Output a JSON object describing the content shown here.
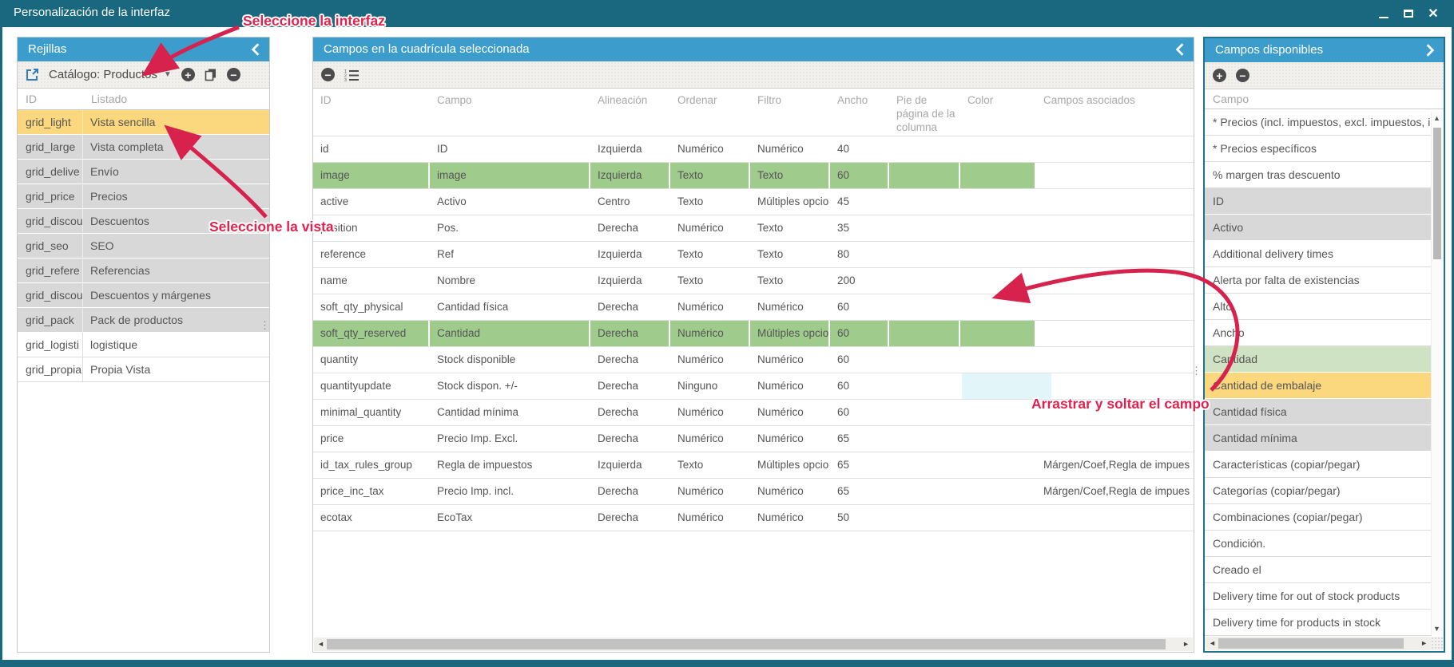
{
  "window": {
    "title": "Personalización de la interfaz"
  },
  "colors": {
    "titlebar": "#196880",
    "panel_header": "#3C9DCD",
    "selected_orange": "#FBD77D",
    "row_gray": "#D8D8D8",
    "row_green": "#9FCB8D",
    "item_green": "#CFE2C3",
    "drop_cyan": "#E2F5F9",
    "annotation_red": "#E0234E",
    "link_blue": "#2D7DC0"
  },
  "annotations": {
    "interface": "Seleccione la interfaz",
    "view": "Seleccione la vista",
    "drag": "Arrastrar y soltar el campo"
  },
  "grids_panel": {
    "title": "Rejillas",
    "toolbar": {
      "catalog_label": "Catálogo: Productos",
      "icons": [
        "external-link-icon",
        "chevron-down-icon",
        "add-icon",
        "copy-icon",
        "remove-icon"
      ]
    },
    "columns": [
      "ID",
      "Listado"
    ],
    "rows": [
      {
        "id": "grid_light",
        "label": "Vista sencilla",
        "state": "selected"
      },
      {
        "id": "grid_large",
        "label": "Vista completa",
        "state": "gray"
      },
      {
        "id": "grid_delive",
        "label": "Envío",
        "state": "gray"
      },
      {
        "id": "grid_price",
        "label": "Precios",
        "state": "gray"
      },
      {
        "id": "grid_discou",
        "label": "Descuentos",
        "state": "gray"
      },
      {
        "id": "grid_seo",
        "label": "SEO",
        "state": "gray"
      },
      {
        "id": "grid_refere",
        "label": "Referencias",
        "state": "gray"
      },
      {
        "id": "grid_discou",
        "label": "Descuentos y márgenes",
        "state": "gray"
      },
      {
        "id": "grid_pack",
        "label": "Pack de productos",
        "state": "gray"
      },
      {
        "id": "grid_logisti",
        "label": "logistique",
        "state": "white"
      },
      {
        "id": "grid_propia",
        "label": "Propia Vista",
        "state": "white"
      }
    ]
  },
  "fields_panel": {
    "title": "Campos en la cuadrícula seleccionada",
    "toolbar": {
      "icons": [
        "remove-icon",
        "ordered-list-icon"
      ]
    },
    "columns": [
      "ID",
      "Campo",
      "Alineación",
      "Ordenar",
      "Filtro",
      "Ancho",
      "Pie de página de la columna",
      "Color",
      "Campos asociados"
    ],
    "rows": [
      {
        "id": "id",
        "campo": "ID",
        "alineacion": "Izquierda",
        "ordenar": "Numérico",
        "filtro": "Numérico",
        "ancho": "40",
        "pie": "",
        "color": "",
        "asociados": "",
        "state": "normal"
      },
      {
        "id": "image",
        "campo": "image",
        "alineacion": "Izquierda",
        "ordenar": "Texto",
        "filtro": "Texto",
        "ancho": "60",
        "pie": "",
        "color": "",
        "asociados": "",
        "state": "green"
      },
      {
        "id": "active",
        "campo": "Activo",
        "alineacion": "Centro",
        "ordenar": "Texto",
        "filtro": "Múltiples opcio",
        "ancho": "45",
        "pie": "",
        "color": "",
        "asociados": "",
        "state": "normal"
      },
      {
        "id": "position",
        "campo": "Pos.",
        "alineacion": "Derecha",
        "ordenar": "Numérico",
        "filtro": "Texto",
        "ancho": "35",
        "pie": "",
        "color": "",
        "asociados": "",
        "state": "normal"
      },
      {
        "id": "reference",
        "campo": "Ref",
        "alineacion": "Izquierda",
        "ordenar": "Texto",
        "filtro": "Texto",
        "ancho": "80",
        "pie": "",
        "color": "",
        "asociados": "",
        "state": "normal"
      },
      {
        "id": "name",
        "campo": "Nombre",
        "alineacion": "Izquierda",
        "ordenar": "Texto",
        "filtro": "Texto",
        "ancho": "200",
        "pie": "",
        "color": "",
        "asociados": "",
        "state": "normal"
      },
      {
        "id": "soft_qty_physical",
        "campo": "Cantidad física",
        "alineacion": "Derecha",
        "ordenar": "Numérico",
        "filtro": "Numérico",
        "ancho": "60",
        "pie": "",
        "color": "",
        "asociados": "",
        "state": "normal"
      },
      {
        "id": "soft_qty_reserved",
        "campo": "Cantidad",
        "alineacion": "Derecha",
        "ordenar": "Numérico",
        "filtro": "Múltiples opcio",
        "ancho": "60",
        "pie": "",
        "color": "",
        "asociados": "",
        "state": "green"
      },
      {
        "id": "quantity",
        "campo": "Stock disponible",
        "alineacion": "Derecha",
        "ordenar": "Numérico",
        "filtro": "Numérico",
        "ancho": "60",
        "pie": "",
        "color": "",
        "asociados": "",
        "state": "normal"
      },
      {
        "id": "quantityupdate",
        "campo": "Stock dispon. +/-",
        "alineacion": "Derecha",
        "ordenar": "Ninguno",
        "filtro": "Numérico",
        "ancho": "60",
        "pie": "",
        "color": "",
        "asociados": "",
        "state": "normal",
        "drop": true
      },
      {
        "id": "minimal_quantity",
        "campo": "Cantidad mínima",
        "alineacion": "Derecha",
        "ordenar": "Numérico",
        "filtro": "Numérico",
        "ancho": "60",
        "pie": "",
        "color": "",
        "asociados": "",
        "state": "normal"
      },
      {
        "id": "price",
        "campo": "Precio Imp. Excl.",
        "alineacion": "Derecha",
        "ordenar": "Numérico",
        "filtro": "Numérico",
        "ancho": "65",
        "pie": "",
        "color": "",
        "asociados": "",
        "state": "normal"
      },
      {
        "id": "id_tax_rules_group",
        "campo": "Regla de impuestos",
        "alineacion": "Izquierda",
        "ordenar": "Texto",
        "filtro": "Múltiples opcio",
        "ancho": "65",
        "pie": "",
        "color": "",
        "asociados": "Márgen/Coef,Regla de impues",
        "state": "normal"
      },
      {
        "id": "price_inc_tax",
        "campo": "Precio Imp. incl.",
        "alineacion": "Derecha",
        "ordenar": "Numérico",
        "filtro": "Numérico",
        "ancho": "65",
        "pie": "",
        "color": "",
        "asociados": "Márgen/Coef,Regla de impues",
        "state": "normal"
      },
      {
        "id": "ecotax",
        "campo": "EcoTax",
        "alineacion": "Derecha",
        "ordenar": "Numérico",
        "filtro": "Numérico",
        "ancho": "50",
        "pie": "",
        "color": "",
        "asociados": "",
        "state": "normal"
      }
    ]
  },
  "available_panel": {
    "title": "Campos disponibles",
    "toolbar": {
      "icons": [
        "add-icon",
        "remove-icon"
      ]
    },
    "column": "Campo",
    "items": [
      {
        "label": "* Precios (incl. impuestos, excl. impuestos, i",
        "state": "white"
      },
      {
        "label": "* Precios específicos",
        "state": "white"
      },
      {
        "label": "% margen tras descuento",
        "state": "white"
      },
      {
        "label": "ID",
        "state": "gray"
      },
      {
        "label": "Activo",
        "state": "gray"
      },
      {
        "label": "Additional delivery times",
        "state": "white"
      },
      {
        "label": "Alerta por falta de existencias",
        "state": "white"
      },
      {
        "label": "Alto",
        "state": "white"
      },
      {
        "label": "Ancho",
        "state": "white"
      },
      {
        "label": "Cantidad",
        "state": "green"
      },
      {
        "label": "Cantidad de embalaje",
        "state": "selected"
      },
      {
        "label": "Cantidad física",
        "state": "gray"
      },
      {
        "label": "Cantidad mínima",
        "state": "gray"
      },
      {
        "label": "Características (copiar/pegar)",
        "state": "white"
      },
      {
        "label": "Categorías (copiar/pegar)",
        "state": "white"
      },
      {
        "label": "Combinaciones (copiar/pegar)",
        "state": "white"
      },
      {
        "label": "Condición.",
        "state": "white"
      },
      {
        "label": "Creado el",
        "state": "white"
      },
      {
        "label": "Delivery time for out of stock products",
        "state": "white"
      },
      {
        "label": "Delivery time for products in stock",
        "state": "white"
      }
    ]
  }
}
